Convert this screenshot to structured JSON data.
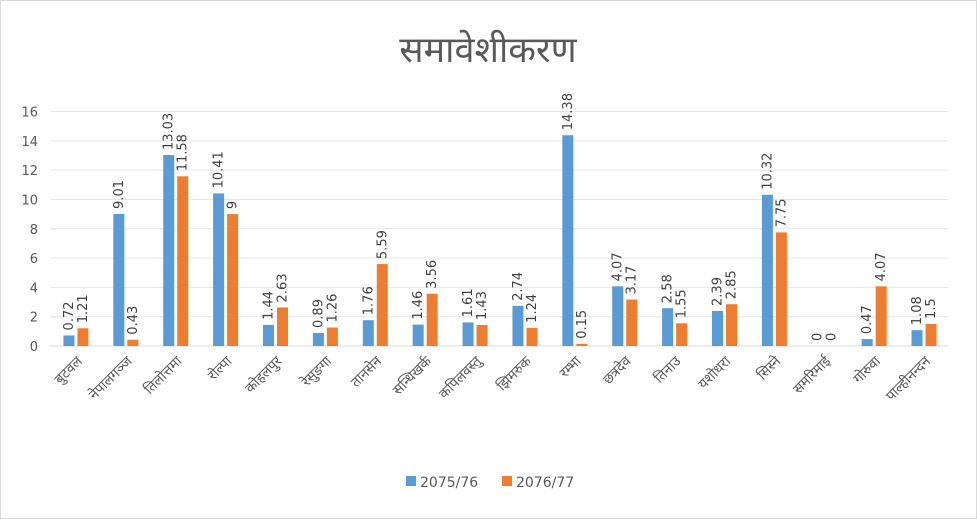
{
  "chart_data": {
    "type": "bar",
    "title": "समावेशीकरण",
    "categories": [
      "बुटवल",
      "नेपालगञ्ज",
      "तिलोत्तमा",
      "रोल्पा",
      "कोहलपुर",
      "रेसुङगा",
      "तानसेन",
      "सन्धिखर्क",
      "कपिलवस्तु",
      "झिमरुक",
      "रम्भा",
      "छत्रदेव",
      "तिनाउ",
      "यशोधरा",
      "सिस्ने",
      "समरिमाई",
      "गोरुवा",
      "पाल्हीनन्दन"
    ],
    "series": [
      {
        "name": "2075/76",
        "color": "#5b9bd5",
        "values": [
          0.72,
          9.01,
          13.03,
          10.41,
          1.44,
          0.89,
          1.76,
          1.46,
          1.61,
          2.74,
          14.38,
          4.07,
          2.58,
          2.39,
          10.32,
          0,
          0.47,
          1.08
        ]
      },
      {
        "name": "2076/77",
        "color": "#ed7d31",
        "values": [
          1.21,
          0.43,
          11.58,
          9,
          2.63,
          1.26,
          5.59,
          3.56,
          1.43,
          1.24,
          0.15,
          3.17,
          1.55,
          2.85,
          7.75,
          0,
          4.07,
          1.5
        ]
      }
    ],
    "ylim": [
      0,
      16
    ],
    "yticks": [
      0,
      2,
      4,
      6,
      8,
      10,
      12,
      14,
      16
    ],
    "grid": true,
    "legend": "bottom",
    "xlabel": "",
    "ylabel": ""
  }
}
